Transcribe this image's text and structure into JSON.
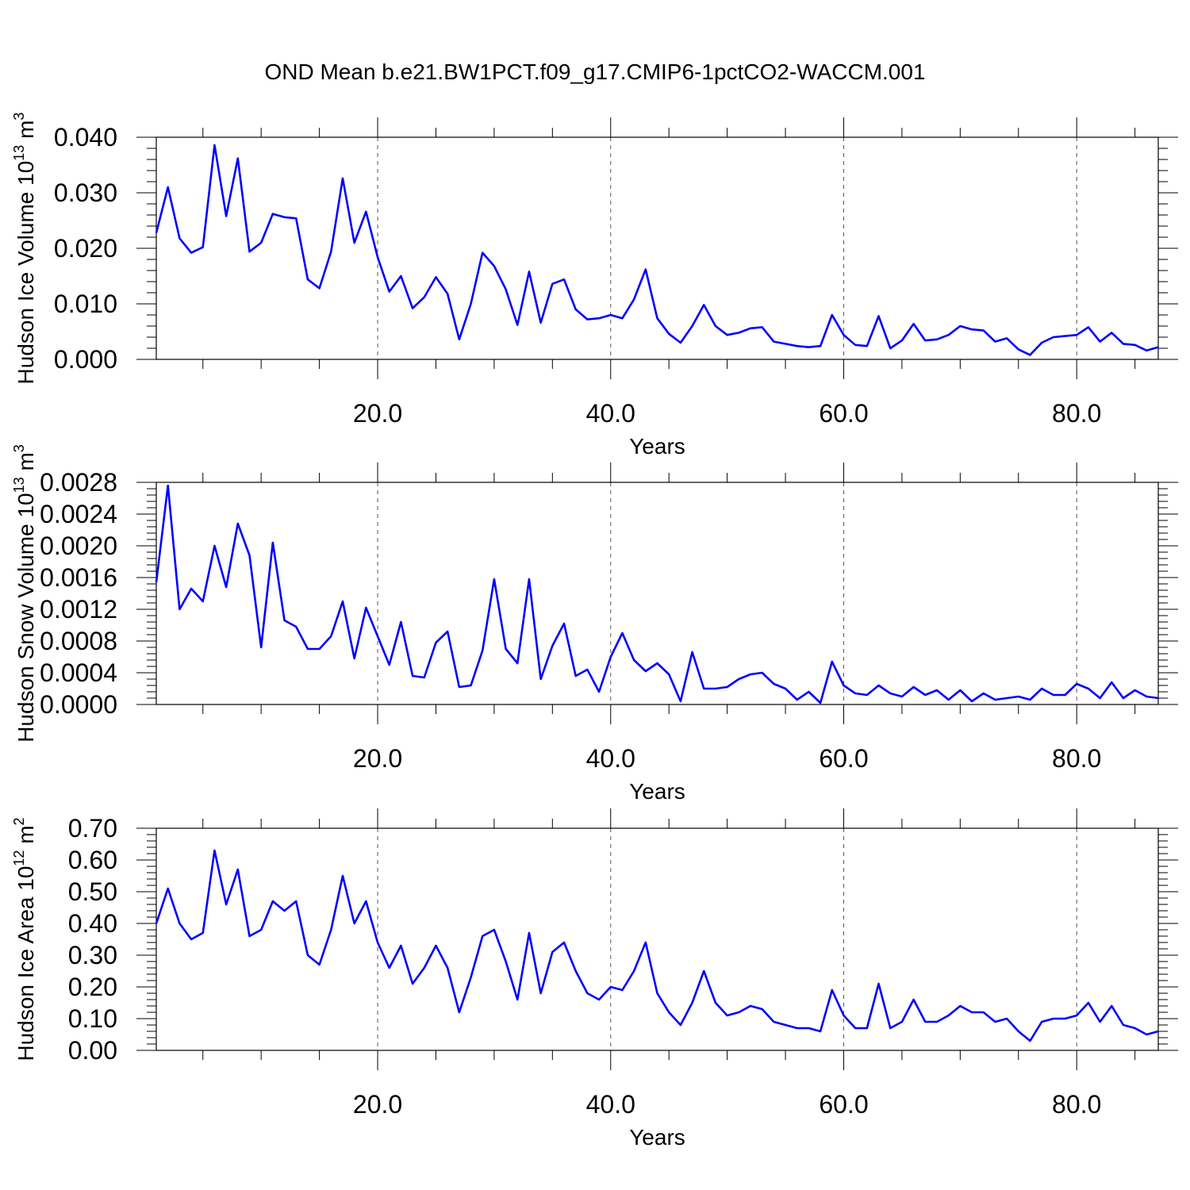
{
  "title": "OND Mean b.e21.BW1PCT.f09_g17.CMIP6-1pctCO2-WACCM.001",
  "series_color": "#0000ff",
  "chart_data": [
    {
      "type": "line",
      "xlabel": "Years",
      "ylabel_text": "Hudson Ice Volume 10",
      "ylabel_exp": "13",
      "ylabel_unit": " m",
      "ylabel_unit_exp": "3",
      "xlim": [
        1,
        87
      ],
      "ylim": [
        0,
        0.04
      ],
      "grid": "dashed vertical at x ticks",
      "x_ticks": [
        20,
        40,
        60,
        80
      ],
      "x_tick_labels": [
        "20.0",
        "40.0",
        "60.0",
        "80.0"
      ],
      "y_ticks": [
        0,
        0.01,
        0.02,
        0.03,
        0.04
      ],
      "y_tick_labels": [
        "0.000",
        "0.010",
        "0.020",
        "0.030",
        "0.040"
      ],
      "series": [
        {
          "values": [
            0.0228,
            0.031,
            0.0218,
            0.0192,
            0.0202,
            0.0386,
            0.0258,
            0.0362,
            0.0194,
            0.021,
            0.0262,
            0.0256,
            0.0254,
            0.0144,
            0.0128,
            0.0194,
            0.0326,
            0.021,
            0.0266,
            0.0184,
            0.0122,
            0.015,
            0.0092,
            0.0112,
            0.0148,
            0.0118,
            0.0036,
            0.01,
            0.0192,
            0.0168,
            0.0126,
            0.0062,
            0.0158,
            0.0066,
            0.0136,
            0.0144,
            0.009,
            0.0072,
            0.0074,
            0.008,
            0.0074,
            0.0108,
            0.0162,
            0.0074,
            0.0046,
            0.003,
            0.006,
            0.0098,
            0.006,
            0.0044,
            0.0048,
            0.0056,
            0.0058,
            0.0032,
            0.0028,
            0.0024,
            0.0022,
            0.0024,
            0.008,
            0.0044,
            0.0026,
            0.0024,
            0.0078,
            0.002,
            0.0034,
            0.0064,
            0.0034,
            0.0036,
            0.0044,
            0.006,
            0.0054,
            0.0052,
            0.0032,
            0.0038,
            0.0018,
            0.0008,
            0.003,
            0.004,
            0.0042,
            0.0044,
            0.0058,
            0.0032,
            0.0048,
            0.0028,
            0.0026,
            0.0016,
            0.0022
          ]
        }
      ]
    },
    {
      "type": "line",
      "xlabel": "Years",
      "ylabel_text": "Hudson Snow Volume 10",
      "ylabel_exp": "13",
      "ylabel_unit": " m",
      "ylabel_unit_exp": "3",
      "xlim": [
        1,
        87
      ],
      "ylim": [
        0,
        0.0028
      ],
      "grid": "dashed vertical at x ticks",
      "x_ticks": [
        20,
        40,
        60,
        80
      ],
      "x_tick_labels": [
        "20.0",
        "40.0",
        "60.0",
        "80.0"
      ],
      "y_ticks": [
        0,
        0.0004,
        0.0008,
        0.0012,
        0.0016,
        0.002,
        0.0024,
        0.0028
      ],
      "y_tick_labels": [
        "0.0000",
        "0.0004",
        "0.0008",
        "0.0012",
        "0.0016",
        "0.0020",
        "0.0024",
        "0.0028"
      ],
      "series": [
        {
          "values": [
            0.00154,
            0.00276,
            0.0012,
            0.00146,
            0.0013,
            0.002,
            0.00148,
            0.00228,
            0.00188,
            0.00072,
            0.00204,
            0.00106,
            0.00098,
            0.0007,
            0.0007,
            0.00086,
            0.0013,
            0.00058,
            0.00122,
            0.00086,
            0.0005,
            0.00104,
            0.00036,
            0.00034,
            0.00078,
            0.00092,
            0.00022,
            0.00024,
            0.00068,
            0.00158,
            0.0007,
            0.00052,
            0.00158,
            0.00032,
            0.00074,
            0.00102,
            0.00036,
            0.00044,
            0.00016,
            0.0006,
            0.0009,
            0.00056,
            0.00042,
            0.00052,
            0.00038,
            4e-05,
            0.00066,
            0.0002,
            0.0002,
            0.00022,
            0.00032,
            0.00038,
            0.0004,
            0.00026,
            0.0002,
            6e-05,
            0.00016,
            2e-05,
            0.00054,
            0.00024,
            0.00014,
            0.00012,
            0.00024,
            0.00014,
            0.0001,
            0.00022,
            0.00012,
            0.00018,
            6e-05,
            0.00018,
            4e-05,
            0.00014,
            6e-05,
            8e-05,
            0.0001,
            6e-05,
            0.0002,
            0.00012,
            0.00012,
            0.00026,
            0.0002,
            8e-05,
            0.00028,
            8e-05,
            0.00018,
            0.0001,
            8e-05
          ]
        }
      ]
    },
    {
      "type": "line",
      "xlabel": "Years",
      "ylabel_text": "Hudson Ice Area 10",
      "ylabel_exp": "12",
      "ylabel_unit": " m",
      "ylabel_unit_exp": "2",
      "xlim": [
        1,
        87
      ],
      "ylim": [
        0,
        0.7
      ],
      "grid": "dashed vertical at x ticks",
      "x_ticks": [
        20,
        40,
        60,
        80
      ],
      "x_tick_labels": [
        "20.0",
        "40.0",
        "60.0",
        "80.0"
      ],
      "y_ticks": [
        0,
        0.1,
        0.2,
        0.3,
        0.4,
        0.5,
        0.6,
        0.7
      ],
      "y_tick_labels": [
        "0.00",
        "0.10",
        "0.20",
        "0.30",
        "0.40",
        "0.50",
        "0.60",
        "0.70"
      ],
      "series": [
        {
          "values": [
            0.4,
            0.51,
            0.4,
            0.35,
            0.37,
            0.63,
            0.46,
            0.57,
            0.36,
            0.38,
            0.47,
            0.44,
            0.47,
            0.3,
            0.27,
            0.38,
            0.55,
            0.4,
            0.47,
            0.34,
            0.26,
            0.33,
            0.21,
            0.26,
            0.33,
            0.26,
            0.12,
            0.23,
            0.36,
            0.38,
            0.28,
            0.16,
            0.37,
            0.18,
            0.31,
            0.34,
            0.25,
            0.18,
            0.16,
            0.2,
            0.19,
            0.25,
            0.34,
            0.18,
            0.12,
            0.08,
            0.15,
            0.25,
            0.15,
            0.11,
            0.12,
            0.14,
            0.13,
            0.09,
            0.08,
            0.07,
            0.07,
            0.06,
            0.19,
            0.11,
            0.07,
            0.07,
            0.21,
            0.07,
            0.09,
            0.16,
            0.09,
            0.09,
            0.11,
            0.14,
            0.12,
            0.12,
            0.09,
            0.1,
            0.06,
            0.03,
            0.09,
            0.1,
            0.1,
            0.11,
            0.15,
            0.09,
            0.14,
            0.08,
            0.07,
            0.05,
            0.06
          ]
        }
      ]
    }
  ]
}
